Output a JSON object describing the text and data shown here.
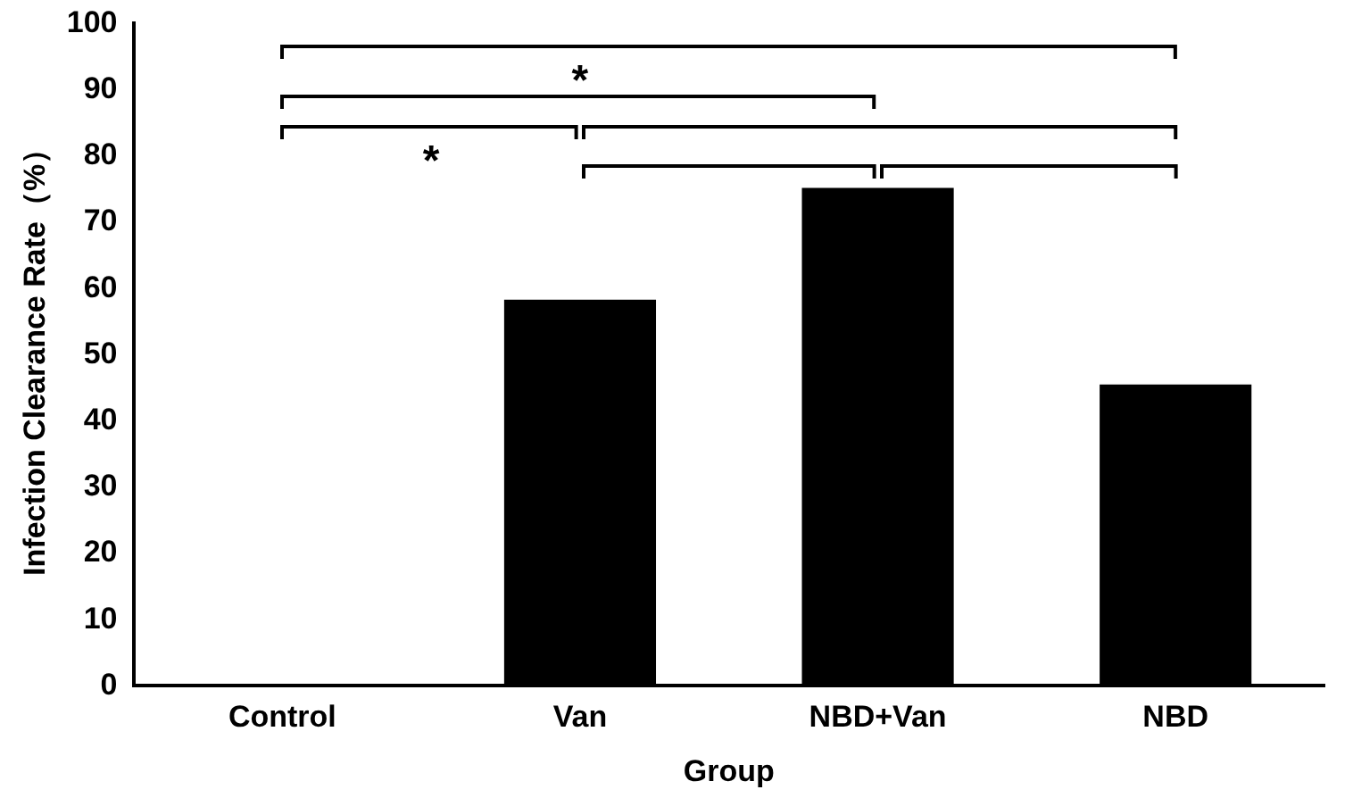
{
  "chart_data": {
    "type": "bar",
    "xlabel": "Group",
    "ylabel": "Infection Clearance Rate（%）",
    "categories": [
      "Control",
      "Van",
      "NBD+Van",
      "NBD"
    ],
    "values": [
      0,
      58.3,
      75.2,
      45.5
    ],
    "color": "#000000",
    "ylim": [
      0,
      100
    ],
    "yticks": [
      0,
      10,
      20,
      30,
      40,
      50,
      60,
      70,
      80,
      90,
      100
    ],
    "grid": false,
    "legend": false,
    "annotations": [
      "*",
      "*"
    ]
  }
}
